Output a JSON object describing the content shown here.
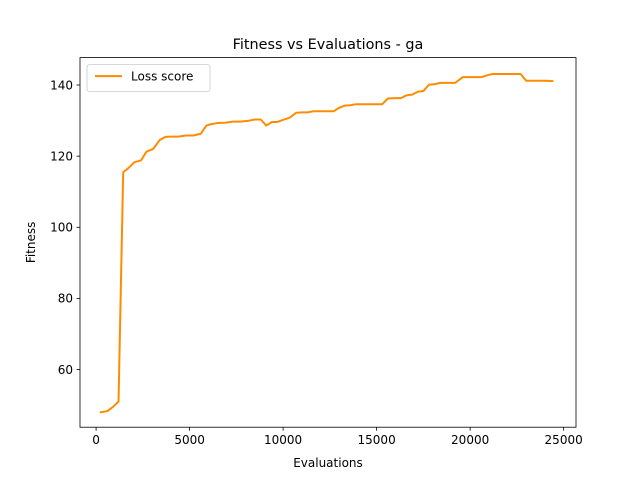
{
  "chart_data": {
    "type": "line",
    "title": "Fitness vs Evaluations - ga",
    "xlabel": "Evaluations",
    "ylabel": "Fitness",
    "xlim": [
      -860,
      25660
    ],
    "ylim": [
      43.8,
      147.7
    ],
    "xticks": [
      0,
      5000,
      10000,
      15000,
      20000,
      25000
    ],
    "xtick_labels": [
      "0",
      "5000",
      "10000",
      "15000",
      "20000",
      "25000"
    ],
    "yticks": [
      60,
      80,
      100,
      120,
      140
    ],
    "ytick_labels": [
      "60",
      "80",
      "100",
      "120",
      "140"
    ],
    "grid": false,
    "legend_position": "top-left",
    "series": [
      {
        "name": "Loss score",
        "color": "#ff8c00",
        "x": [
          250,
          600,
          900,
          1200,
          1450,
          1700,
          2050,
          2400,
          2700,
          3050,
          3400,
          3700,
          4000,
          4400,
          4800,
          5200,
          5600,
          5900,
          6150,
          6500,
          6900,
          7300,
          7700,
          8100,
          8500,
          8800,
          9100,
          9400,
          9700,
          10000,
          10350,
          10700,
          11000,
          11300,
          11600,
          12000,
          12400,
          12700,
          13000,
          13300,
          13600,
          13900,
          14200,
          14600,
          15000,
          15300,
          15600,
          16000,
          16300,
          16600,
          16900,
          17200,
          17500,
          17800,
          18100,
          18400,
          18800,
          19200,
          19600,
          19900,
          20200,
          20600,
          20900,
          21200,
          21500,
          21900,
          22300,
          22700,
          23000,
          23300,
          23700,
          24000,
          24400
        ],
        "y": [
          48,
          48.3,
          49.5,
          51,
          115.5,
          116.5,
          118.3,
          118.8,
          121.3,
          122,
          124.5,
          125.4,
          125.5,
          125.5,
          125.8,
          125.8,
          126.3,
          128.6,
          129,
          129.3,
          129.4,
          129.7,
          129.7,
          129.9,
          130.3,
          130.3,
          128.6,
          129.6,
          129.6,
          130.2,
          130.8,
          132.2,
          132.3,
          132.3,
          132.6,
          132.6,
          132.6,
          132.6,
          133.6,
          134.2,
          134.3,
          134.6,
          134.6,
          134.6,
          134.6,
          134.6,
          136.2,
          136.3,
          136.3,
          137.1,
          137.3,
          138.1,
          138.3,
          140.1,
          140.2,
          140.6,
          140.6,
          140.6,
          142.2,
          142.2,
          142.2,
          142.2,
          142.7,
          143.1,
          143.1,
          143.1,
          143.1,
          143.1,
          141.2,
          141.2,
          141.2,
          141.2,
          141.1
        ]
      }
    ]
  }
}
